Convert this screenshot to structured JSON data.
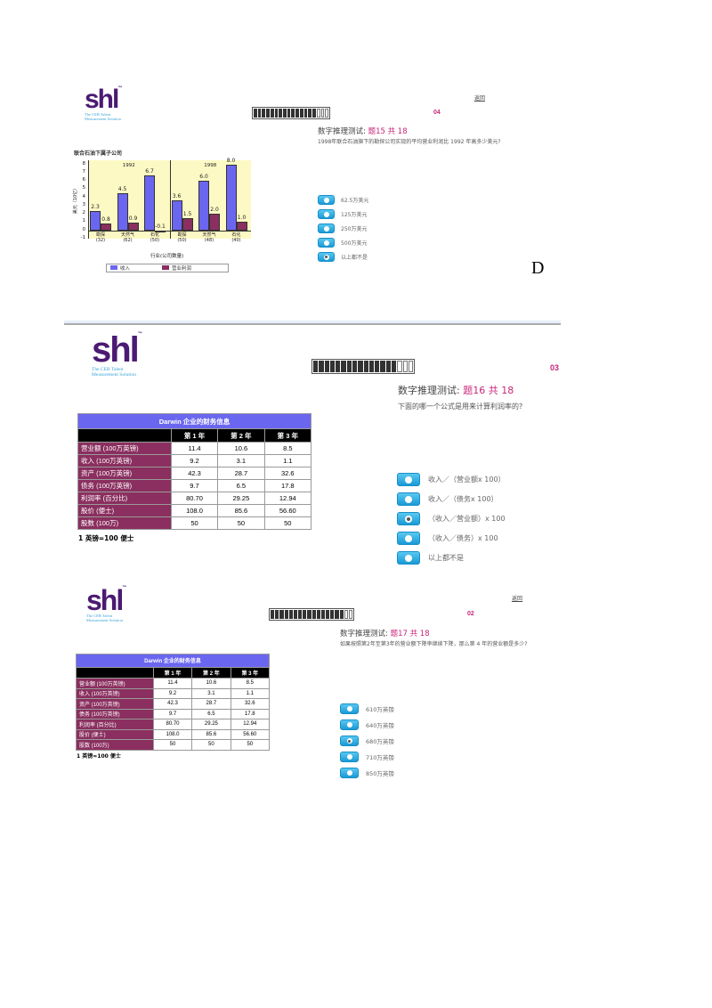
{
  "panels": [
    {
      "logo": {
        "text": "shl",
        "tm": "™",
        "tagline1": "The CEB Talent",
        "tagline2": "Measurement Solution"
      },
      "back_link": "返回",
      "progress": {
        "total": 18,
        "filled": 15
      },
      "timer": "04",
      "title_prefix": "数字推理测试: ",
      "title_highlight": "题15 共 18",
      "question": "1998年联合石油旗下的勘探公司实现的平均营业利润比 1992 年高多少美元?",
      "options": [
        "62.5万美元",
        "125万美元",
        "250万美元",
        "500万美元",
        "以上都不是"
      ],
      "selected_index": 4,
      "answer_letter": "D"
    },
    {
      "logo": {
        "text": "shl",
        "tm": "™",
        "tagline1": "The CEB Talent",
        "tagline2": "Measurement Solution"
      },
      "progress": {
        "total": 18,
        "filled": 15
      },
      "timer": "03",
      "title_prefix": "数字推理测试: ",
      "title_highlight": "题16 共 18",
      "question": "下面的哪一个公式是用来计算利润率的?",
      "options": [
        "收入／（营业额x 100）",
        "收入／（债务x 100）",
        "（收入／营业额）x 100",
        "（收入／债务）x 100",
        "以上都不是"
      ],
      "selected_index": 2
    },
    {
      "logo": {
        "text": "shl",
        "tm": "™",
        "tagline1": "The CEB Talent",
        "tagline2": "Measurement Solution"
      },
      "back_link": "返回",
      "progress": {
        "total": 18,
        "filled": 16
      },
      "timer": "02",
      "title_prefix": "数字推理测试: ",
      "title_highlight": "题17 共 18",
      "question": "如果按照第2年至第3年的营业额下降率继续下降，那么第 4 年的营业额是多少?",
      "options": [
        "610万英镑",
        "640万英镑",
        "680万英镑",
        "710万英镑",
        "850万英镑"
      ],
      "selected_index": 2
    }
  ],
  "table": {
    "caption": "Darwin 企业的财务信息",
    "headers": [
      "",
      "第 1 年",
      "第 2 年",
      "第 3 年"
    ],
    "rows": [
      [
        "营业额 (100万英镑)",
        "11.4",
        "10.6",
        "8.5"
      ],
      [
        "收入 (100万英镑)",
        "9.2",
        "3.1",
        "1.1"
      ],
      [
        "资产 (100万英镑)",
        "42.3",
        "28.7",
        "32.6"
      ],
      [
        "债务 (100万英镑)",
        "9.7",
        "6.5",
        "17.8"
      ],
      [
        "利润率 (百分比)",
        "80.70",
        "29.25",
        "12.94"
      ],
      [
        "股价 (便士)",
        "108.0",
        "85.6",
        "56.60"
      ],
      [
        "股数 (100万)",
        "50",
        "50",
        "50"
      ]
    ],
    "note": "1 英镑=100 便士"
  },
  "chart_data": {
    "type": "bar",
    "title": "联合石油下属子公司",
    "groups": [
      {
        "label": "1992",
        "categories": [
          "勘探\n(32)",
          "天然气\n(62)",
          "石化\n(50)"
        ]
      },
      {
        "label": "1998",
        "categories": [
          "勘探\n(50)",
          "天然气\n(48)",
          "石化\n(40)"
        ]
      }
    ],
    "categories": [
      "勘探 (32)",
      "天然气 (62)",
      "石化 (50)",
      "勘探 (50)",
      "天然气 (48)",
      "石化 (40)"
    ],
    "series": [
      {
        "name": "收入",
        "color": "#6b66f0",
        "values": [
          2.3,
          4.5,
          6.7,
          3.6,
          6.0,
          8.0
        ]
      },
      {
        "name": "营业利润",
        "color": "#8a2f5f",
        "values": [
          0.8,
          0.9,
          -0.1,
          1.5,
          2.0,
          1.0
        ]
      }
    ],
    "value_labels": {
      "收入": [
        "2.3",
        "4.5",
        "6.7",
        "3.6",
        "6.0",
        "8.0"
      ],
      "营业利润": [
        "0.8",
        "0.9",
        "-0.1",
        "1.5",
        "2.0",
        "1.0"
      ]
    },
    "xlabel": "行业(公司数量)",
    "ylabel": "美元（10亿）",
    "yticks": [
      "8",
      "7",
      "6",
      "5",
      "4",
      "3",
      "2",
      "1",
      "0",
      "-1"
    ],
    "ylim": [
      -1,
      8.5
    ],
    "grid": false,
    "legend_position": "bottom"
  }
}
